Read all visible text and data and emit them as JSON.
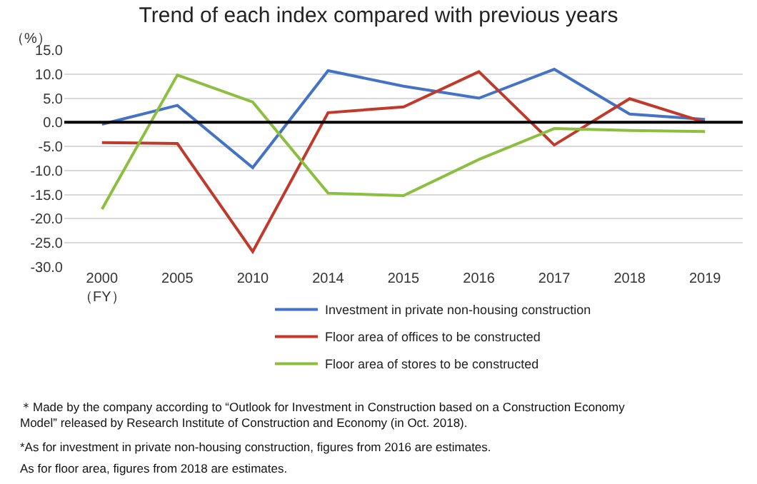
{
  "chart_data": {
    "type": "line",
    "title": "Trend of each index compared with previous years",
    "ylabel": "（%）",
    "categories": [
      "2000\n（FY）",
      "2005",
      "2010",
      "2014",
      "2015",
      "2016",
      "2017",
      "2018",
      "2019"
    ],
    "series": [
      {
        "name": "Investment in private non-housing construction",
        "color": "#4472c4",
        "values": [
          -0.4,
          3.5,
          -9.4,
          10.7,
          7.5,
          5.0,
          11.0,
          1.7,
          0.6
        ]
      },
      {
        "name": "Floor area of offices to be constructed",
        "color": "#c0392b",
        "values": [
          -4.2,
          -4.4,
          -26.8,
          2.0,
          3.2,
          10.5,
          -4.7,
          4.9,
          0.0
        ]
      },
      {
        "name": "Floor area of stores to be constructed",
        "color": "#8cbf3f",
        "values": [
          -18.0,
          9.8,
          4.2,
          -14.7,
          -15.2,
          -7.7,
          -1.3,
          -1.7,
          -1.9
        ]
      }
    ],
    "ylim": [
      -30,
      15
    ],
    "yticks": [
      {
        "value": 15,
        "label": "15.0"
      },
      {
        "value": 10,
        "label": "10.0"
      },
      {
        "value": 5,
        "label": "5.0"
      },
      {
        "value": 0,
        "label": "0.0"
      },
      {
        "value": -5,
        "label": "-5.0"
      },
      {
        "value": -10,
        "label": "-10.0"
      },
      {
        "value": -15,
        "label": "-15.0"
      },
      {
        "value": -20,
        "label": "-20.0"
      },
      {
        "value": -25,
        "label": "-25.0"
      },
      {
        "value": -30,
        "label": "-30.0"
      }
    ],
    "ref_lines": [
      {
        "axis": "y",
        "value": 0,
        "color": "#000000"
      }
    ],
    "grid": "y",
    "legend": "bottom",
    "marker": "none",
    "line_style": "solid",
    "annotations": [
      "＊Made by the company according to “Outlook for Investment in Construction based on a Construction Economy\nModel” released by Research Institute of Construction and Economy (in Oct. 2018).",
      "*As for investment in private non-housing construction, figures from 2016 are estimates.",
      "As for floor area, figures from 2018 are estimates."
    ]
  }
}
